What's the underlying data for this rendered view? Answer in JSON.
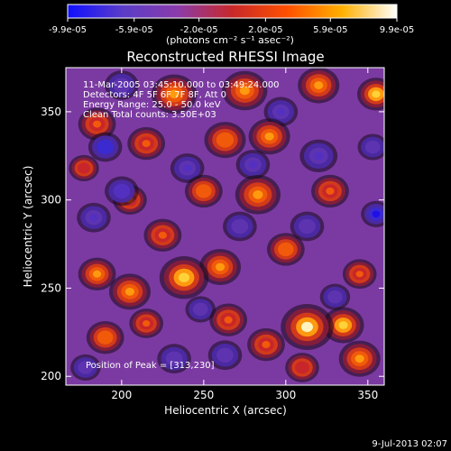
{
  "colorbar": {
    "tick_labels": [
      "-9.9e-05",
      "-5.9e-05",
      "-2.0e-05",
      "2.0e-05",
      "5.9e-05",
      "9.9e-05"
    ],
    "tick_values": [
      -9.9e-05,
      -5.9e-05,
      -2e-05,
      2e-05,
      5.9e-05,
      9.9e-05
    ],
    "range": [
      -9.9e-05,
      9.9e-05
    ],
    "unit_label": "(photons cm⁻² s⁻¹ asec⁻²)",
    "colors": [
      "#1010ff",
      "#5a3cc8",
      "#8a3caa",
      "#c8282a",
      "#ff5000",
      "#ffb000",
      "#ffffff"
    ]
  },
  "chart_data": {
    "type": "heatmap",
    "title": "Reconstructed RHESSI Image",
    "xlabel": "Heliocentric X (arcsec)",
    "ylabel": "Heliocentric Y (arcsec)",
    "xlim": [
      166,
      360
    ],
    "ylim": [
      195,
      375
    ],
    "xticks": [
      200,
      250,
      300,
      350
    ],
    "yticks": [
      200,
      250,
      300,
      350
    ],
    "annotations": [
      "11-Mar-2005 03:45:10.000 to 03:49:24.000",
      "Detectors: 4F 5F 6F 7F 8F, Att 0",
      "Energy Range: 25.0 - 50.0 keV",
      "Clean    Total counts: 3.50E+03"
    ],
    "peak_label": "Position of Peak = [313,230]",
    "peak": [
      313,
      230
    ],
    "blobs": [
      {
        "x": 313,
        "y": 228,
        "v": 1.0,
        "r": 14
      },
      {
        "x": 335,
        "y": 229,
        "v": 0.9,
        "r": 11
      },
      {
        "x": 185,
        "y": 258,
        "v": 0.75,
        "r": 10
      },
      {
        "x": 205,
        "y": 248,
        "v": 0.8,
        "r": 11
      },
      {
        "x": 238,
        "y": 256,
        "v": 0.85,
        "r": 13
      },
      {
        "x": 260,
        "y": 262,
        "v": 0.8,
        "r": 11
      },
      {
        "x": 300,
        "y": 272,
        "v": 0.65,
        "r": 10
      },
      {
        "x": 345,
        "y": 258,
        "v": 0.6,
        "r": 9
      },
      {
        "x": 190,
        "y": 222,
        "v": 0.65,
        "r": 10
      },
      {
        "x": 215,
        "y": 230,
        "v": 0.55,
        "r": 9
      },
      {
        "x": 265,
        "y": 232,
        "v": 0.6,
        "r": 10
      },
      {
        "x": 288,
        "y": 218,
        "v": 0.55,
        "r": 10
      },
      {
        "x": 345,
        "y": 210,
        "v": 0.7,
        "r": 11
      },
      {
        "x": 310,
        "y": 205,
        "v": 0.5,
        "r": 9
      },
      {
        "x": 225,
        "y": 280,
        "v": 0.6,
        "r": 10
      },
      {
        "x": 205,
        "y": 300,
        "v": 0.55,
        "r": 9
      },
      {
        "x": 250,
        "y": 305,
        "v": 0.65,
        "r": 10
      },
      {
        "x": 283,
        "y": 303,
        "v": 0.75,
        "r": 12
      },
      {
        "x": 327,
        "y": 305,
        "v": 0.6,
        "r": 10
      },
      {
        "x": 215,
        "y": 332,
        "v": 0.6,
        "r": 10
      },
      {
        "x": 263,
        "y": 334,
        "v": 0.65,
        "r": 11
      },
      {
        "x": 290,
        "y": 336,
        "v": 0.7,
        "r": 11
      },
      {
        "x": 185,
        "y": 343,
        "v": 0.55,
        "r": 10
      },
      {
        "x": 232,
        "y": 360,
        "v": 0.7,
        "r": 12
      },
      {
        "x": 275,
        "y": 362,
        "v": 0.75,
        "r": 12
      },
      {
        "x": 320,
        "y": 365,
        "v": 0.7,
        "r": 11
      },
      {
        "x": 355,
        "y": 360,
        "v": 0.85,
        "r": 10
      },
      {
        "x": 177,
        "y": 318,
        "v": 0.45,
        "r": 8
      },
      {
        "x": 190,
        "y": 330,
        "v": -0.75,
        "r": 9
      },
      {
        "x": 200,
        "y": 305,
        "v": -0.6,
        "r": 9
      },
      {
        "x": 183,
        "y": 290,
        "v": -0.55,
        "r": 9
      },
      {
        "x": 240,
        "y": 318,
        "v": -0.5,
        "r": 9
      },
      {
        "x": 280,
        "y": 320,
        "v": -0.5,
        "r": 9
      },
      {
        "x": 297,
        "y": 350,
        "v": -0.55,
        "r": 9
      },
      {
        "x": 320,
        "y": 325,
        "v": -0.5,
        "r": 10
      },
      {
        "x": 355,
        "y": 292,
        "v": -0.9,
        "r": 8
      },
      {
        "x": 313,
        "y": 285,
        "v": -0.45,
        "r": 9
      },
      {
        "x": 272,
        "y": 285,
        "v": -0.45,
        "r": 9
      },
      {
        "x": 200,
        "y": 365,
        "v": -0.45,
        "r": 9
      },
      {
        "x": 353,
        "y": 330,
        "v": -0.4,
        "r": 8
      },
      {
        "x": 232,
        "y": 210,
        "v": -0.35,
        "r": 9
      },
      {
        "x": 263,
        "y": 212,
        "v": -0.35,
        "r": 9
      },
      {
        "x": 178,
        "y": 205,
        "v": -0.4,
        "r": 8
      },
      {
        "x": 330,
        "y": 245,
        "v": -0.35,
        "r": 8
      },
      {
        "x": 248,
        "y": 238,
        "v": -0.3,
        "r": 8
      }
    ]
  },
  "footer": {
    "timestamp": "9-Jul-2013 02:07"
  }
}
